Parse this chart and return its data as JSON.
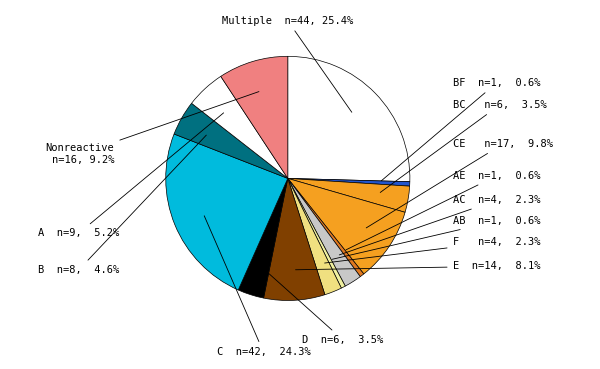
{
  "labels": [
    "Multiple",
    "BF",
    "BC",
    "CE",
    "AE",
    "AC",
    "AB",
    "F",
    "E",
    "D",
    "C",
    "B",
    "A",
    "Nonreactive"
  ],
  "label_display": [
    "Multiple  n=44, 25.4%",
    "BF  n=1,  0.6%",
    "BC   n=6,  3.5%",
    "CE   n=17,  9.8%",
    "AE  n=1,  0.6%",
    "AC  n=4,  2.3%",
    "AB  n=1,  0.6%",
    "F   n=4,  2.3%",
    "E  n=14,  8.1%",
    "D  n=6,  3.5%",
    "C  n=42,  24.3%",
    "B  n=8,  4.6%",
    "A  n=9,  5.2%",
    "Nonreactive\nn=16, 9.2%"
  ],
  "values": [
    44,
    1,
    6,
    17,
    1,
    4,
    1,
    4,
    14,
    6,
    42,
    8,
    9,
    16
  ],
  "colors": [
    "#FFFFFF",
    "#2255CC",
    "#F5A020",
    "#F5A020",
    "#E07820",
    "#C8C8C8",
    "#F0F0A0",
    "#F0E080",
    "#804000",
    "#000000",
    "#00BBDD",
    "#007080",
    "#FFFFFF",
    "#F08080"
  ],
  "explode": [
    0,
    0,
    0,
    0,
    0,
    0,
    0,
    0,
    0,
    0,
    0,
    0,
    0,
    0
  ],
  "startangle": 90,
  "figsize": [
    6.0,
    3.69
  ],
  "dpi": 100
}
